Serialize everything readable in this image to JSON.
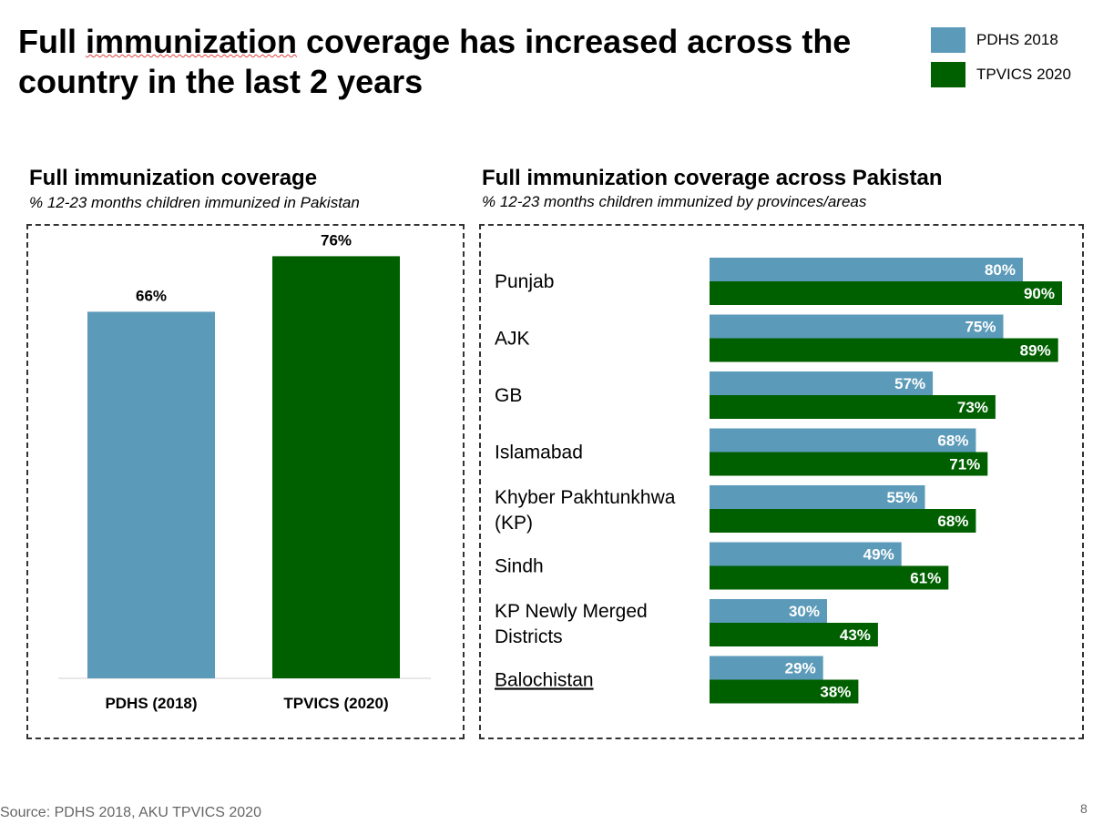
{
  "header": {
    "title_before": "Full ",
    "title_underlined": "immunization",
    "title_after": " coverage has increased across the country in the last 2 years"
  },
  "legend": {
    "items": [
      {
        "label": "PDHS 2018",
        "color": "#5b9ab8"
      },
      {
        "label": "TPVICS 2020",
        "color": "#006000"
      }
    ]
  },
  "left_panel": {
    "title": "Full immunization coverage",
    "subtitle": "% 12-23 months children immunized in Pakistan"
  },
  "right_panel": {
    "title": "Full immunization coverage across Pakistan",
    "subtitle": "% 12-23 months children immunized by provinces/areas"
  },
  "chart_data": [
    {
      "type": "bar",
      "categories": [
        "PDHS (2018)",
        "TPVICS (2020)"
      ],
      "values": [
        66,
        76
      ],
      "value_labels": [
        "66%",
        "76%"
      ],
      "colors": [
        "#5b9ab8",
        "#006000"
      ],
      "unit": "%",
      "ylim": [
        0,
        100
      ]
    },
    {
      "type": "bar",
      "orientation": "horizontal",
      "categories": [
        "Punjab",
        "AJK",
        "GB",
        "Islamabad",
        "Khyber Pakhtunkhwa (KP)",
        "Sindh",
        "KP Newly Merged Districts",
        "Balochistan"
      ],
      "category_lines": [
        [
          "Punjab"
        ],
        [
          "AJK"
        ],
        [
          "GB"
        ],
        [
          "Islamabad"
        ],
        [
          "Khyber Pakhtunkhwa",
          "(KP)"
        ],
        [
          "Sindh"
        ],
        [
          "KP Newly Merged",
          "Districts"
        ],
        [
          "Balochistan"
        ]
      ],
      "series": [
        {
          "name": "PDHS 2018",
          "color": "#5b9ab8",
          "values": [
            80,
            75,
            57,
            68,
            55,
            49,
            30,
            29
          ],
          "labels": [
            "80%",
            "75%",
            "57%",
            "68%",
            "55%",
            "49%",
            "30%",
            "29%"
          ]
        },
        {
          "name": "TPVICS 2020",
          "color": "#006000",
          "values": [
            90,
            89,
            73,
            71,
            68,
            61,
            43,
            38
          ],
          "labels": [
            "90%",
            "89%",
            "73%",
            "71%",
            "68%",
            "61%",
            "43%",
            "38%"
          ]
        }
      ],
      "unit": "%",
      "xlim": [
        0,
        90
      ]
    }
  ],
  "footer": {
    "source": "Source: PDHS 2018, AKU TPVICS 2020",
    "page_number": "8"
  }
}
